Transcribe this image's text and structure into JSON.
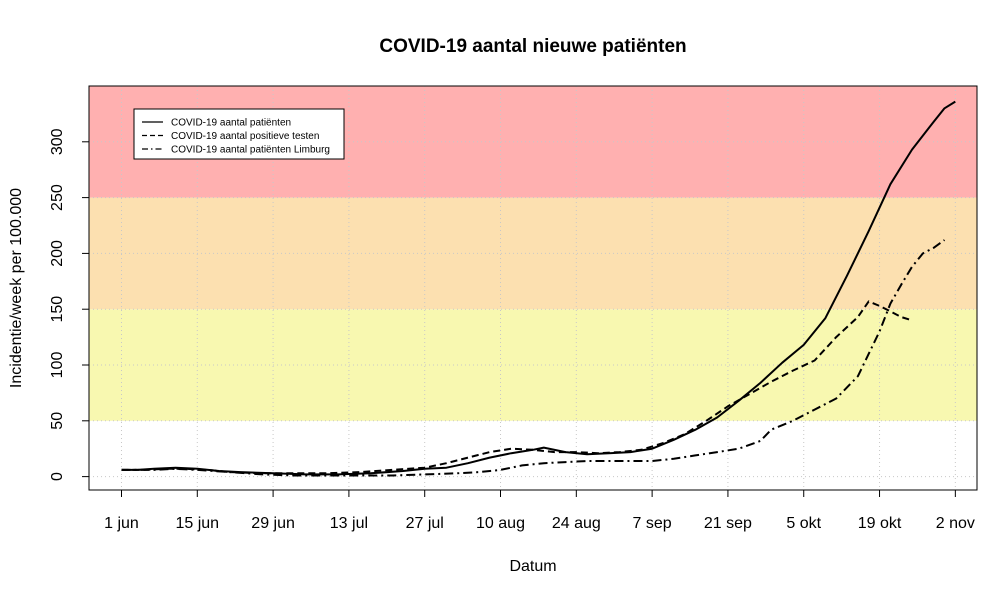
{
  "chart_data": {
    "type": "line",
    "title": "COVID-19 aantal nieuwe patiënten",
    "xlabel": "Datum",
    "ylabel": "Incidentie/week per 100.000",
    "x_ticks": [
      {
        "day": 0,
        "label": "1 jun"
      },
      {
        "day": 14,
        "label": "15 jun"
      },
      {
        "day": 28,
        "label": "29 jun"
      },
      {
        "day": 42,
        "label": "13 jul"
      },
      {
        "day": 56,
        "label": "27 jul"
      },
      {
        "day": 70,
        "label": "10 aug"
      },
      {
        "day": 84,
        "label": "24 aug"
      },
      {
        "day": 98,
        "label": "7 sep"
      },
      {
        "day": 112,
        "label": "21 sep"
      },
      {
        "day": 126,
        "label": "5 okt"
      },
      {
        "day": 140,
        "label": "19 okt"
      },
      {
        "day": 154,
        "label": "2 nov"
      }
    ],
    "xlim": [
      -6,
      158
    ],
    "y_ticks": [
      0,
      50,
      100,
      150,
      200,
      250,
      300
    ],
    "ylim": [
      -12,
      350
    ],
    "grid": true,
    "legend_position": "top-left",
    "bands": [
      {
        "from": 0,
        "to": 50,
        "color": "#ffffff"
      },
      {
        "from": 50,
        "to": 150,
        "color": "#f8f8b0"
      },
      {
        "from": 150,
        "to": 250,
        "color": "#fce0b0"
      },
      {
        "from": 250,
        "to": 350,
        "color": "#ffb0b0"
      }
    ],
    "series": [
      {
        "name": "COVID-19 aantal patiënten",
        "dash": "solid",
        "points": [
          [
            0,
            6
          ],
          [
            3,
            6
          ],
          [
            6,
            7
          ],
          [
            10,
            8
          ],
          [
            14,
            7
          ],
          [
            18,
            5
          ],
          [
            22,
            4
          ],
          [
            28,
            3
          ],
          [
            34,
            2
          ],
          [
            40,
            2
          ],
          [
            46,
            3
          ],
          [
            52,
            5
          ],
          [
            56,
            7
          ],
          [
            60,
            8
          ],
          [
            64,
            12
          ],
          [
            68,
            17
          ],
          [
            72,
            21
          ],
          [
            76,
            24
          ],
          [
            78,
            26
          ],
          [
            82,
            22
          ],
          [
            86,
            20
          ],
          [
            90,
            21
          ],
          [
            94,
            22
          ],
          [
            98,
            25
          ],
          [
            102,
            33
          ],
          [
            106,
            42
          ],
          [
            110,
            53
          ],
          [
            114,
            68
          ],
          [
            118,
            84
          ],
          [
            122,
            102
          ],
          [
            126,
            118
          ],
          [
            130,
            142
          ],
          [
            134,
            180
          ],
          [
            138,
            220
          ],
          [
            142,
            262
          ],
          [
            146,
            293
          ],
          [
            150,
            318
          ],
          [
            152,
            330
          ],
          [
            154,
            336
          ]
        ]
      },
      {
        "name": "COVID-19 aantal positieve testen",
        "dash": "dashed",
        "points": [
          [
            0,
            6
          ],
          [
            4,
            6
          ],
          [
            8,
            7
          ],
          [
            12,
            7
          ],
          [
            16,
            6
          ],
          [
            20,
            4
          ],
          [
            26,
            3
          ],
          [
            32,
            3
          ],
          [
            38,
            3
          ],
          [
            44,
            4
          ],
          [
            50,
            6
          ],
          [
            56,
            8
          ],
          [
            60,
            12
          ],
          [
            64,
            17
          ],
          [
            68,
            22
          ],
          [
            72,
            25
          ],
          [
            76,
            24
          ],
          [
            80,
            22
          ],
          [
            84,
            22
          ],
          [
            88,
            21
          ],
          [
            92,
            22
          ],
          [
            96,
            24
          ],
          [
            100,
            30
          ],
          [
            104,
            38
          ],
          [
            108,
            50
          ],
          [
            112,
            63
          ],
          [
            116,
            74
          ],
          [
            120,
            85
          ],
          [
            124,
            95
          ],
          [
            128,
            104
          ],
          [
            132,
            125
          ],
          [
            136,
            143
          ],
          [
            138,
            157
          ],
          [
            140,
            153
          ],
          [
            142,
            148
          ],
          [
            144,
            143
          ],
          [
            146,
            140
          ]
        ]
      },
      {
        "name": "COVID-19 aantal patiënten Limburg",
        "dash": "dashdot",
        "points": [
          [
            0,
            6
          ],
          [
            6,
            6
          ],
          [
            10,
            7
          ],
          [
            14,
            6
          ],
          [
            20,
            4
          ],
          [
            26,
            2
          ],
          [
            32,
            1
          ],
          [
            38,
            1
          ],
          [
            44,
            1
          ],
          [
            50,
            1
          ],
          [
            56,
            2
          ],
          [
            62,
            3
          ],
          [
            66,
            4
          ],
          [
            70,
            6
          ],
          [
            74,
            10
          ],
          [
            78,
            12
          ],
          [
            82,
            13
          ],
          [
            86,
            14
          ],
          [
            90,
            14
          ],
          [
            94,
            14
          ],
          [
            98,
            14
          ],
          [
            102,
            16
          ],
          [
            106,
            19
          ],
          [
            110,
            22
          ],
          [
            114,
            25
          ],
          [
            118,
            32
          ],
          [
            120,
            42
          ],
          [
            124,
            50
          ],
          [
            128,
            60
          ],
          [
            132,
            70
          ],
          [
            136,
            90
          ],
          [
            138,
            110
          ],
          [
            140,
            130
          ],
          [
            142,
            155
          ],
          [
            144,
            172
          ],
          [
            146,
            188
          ],
          [
            148,
            200
          ],
          [
            150,
            205
          ],
          [
            152,
            212
          ]
        ]
      }
    ]
  }
}
